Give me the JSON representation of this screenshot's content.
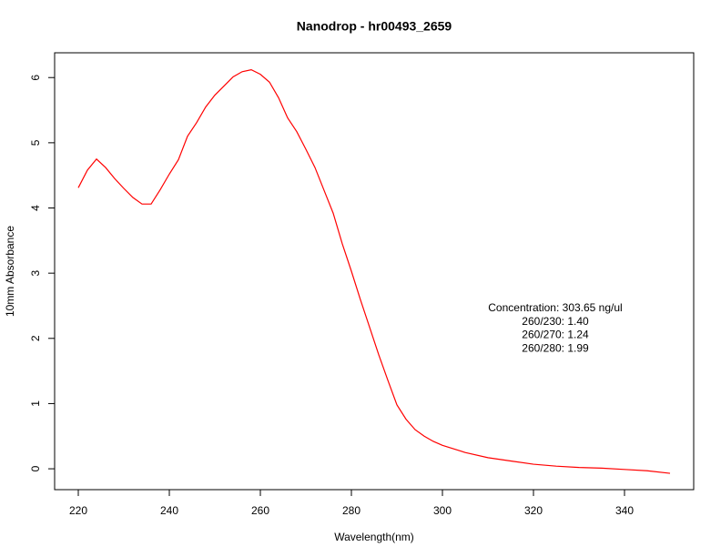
{
  "chart_data": {
    "type": "line",
    "title": "Nanodrop - hr00493_2659",
    "x_label": "Wavelength(nm)",
    "y_label": "10mm Absorbance",
    "x": [
      220,
      222,
      224,
      226,
      228,
      230,
      232,
      234,
      236,
      238,
      240,
      242,
      244,
      246,
      248,
      250,
      252,
      254,
      256,
      258,
      260,
      262,
      264,
      266,
      268,
      270,
      272,
      274,
      276,
      278,
      280,
      282,
      284,
      286,
      288,
      290,
      292,
      294,
      296,
      298,
      300,
      305,
      310,
      315,
      320,
      325,
      330,
      335,
      340,
      345,
      350
    ],
    "values": [
      4.31,
      4.58,
      4.75,
      4.62,
      4.45,
      4.3,
      4.16,
      4.06,
      4.06,
      4.28,
      4.52,
      4.74,
      5.1,
      5.31,
      5.55,
      5.73,
      5.87,
      6.01,
      6.09,
      6.12,
      6.05,
      5.93,
      5.69,
      5.38,
      5.17,
      4.9,
      4.62,
      4.27,
      3.92,
      3.45,
      3.03,
      2.59,
      2.17,
      1.75,
      1.36,
      0.98,
      0.76,
      0.6,
      0.5,
      0.42,
      0.36,
      0.25,
      0.17,
      0.12,
      0.07,
      0.04,
      0.02,
      0.01,
      -0.01,
      -0.03,
      -0.07
    ],
    "color": "#ff0000",
    "xlim": [
      214.8,
      355.2
    ],
    "ylim": [
      -0.32,
      6.38
    ],
    "xticks": [
      220,
      240,
      260,
      280,
      300,
      320,
      340
    ],
    "yticks": [
      0,
      1,
      2,
      3,
      4,
      5,
      6
    ],
    "annotations": [
      "Concentration: 303.65 ng/ul",
      "260/230: 1.40",
      "260/270: 1.24",
      "260/280: 1.99"
    ]
  }
}
